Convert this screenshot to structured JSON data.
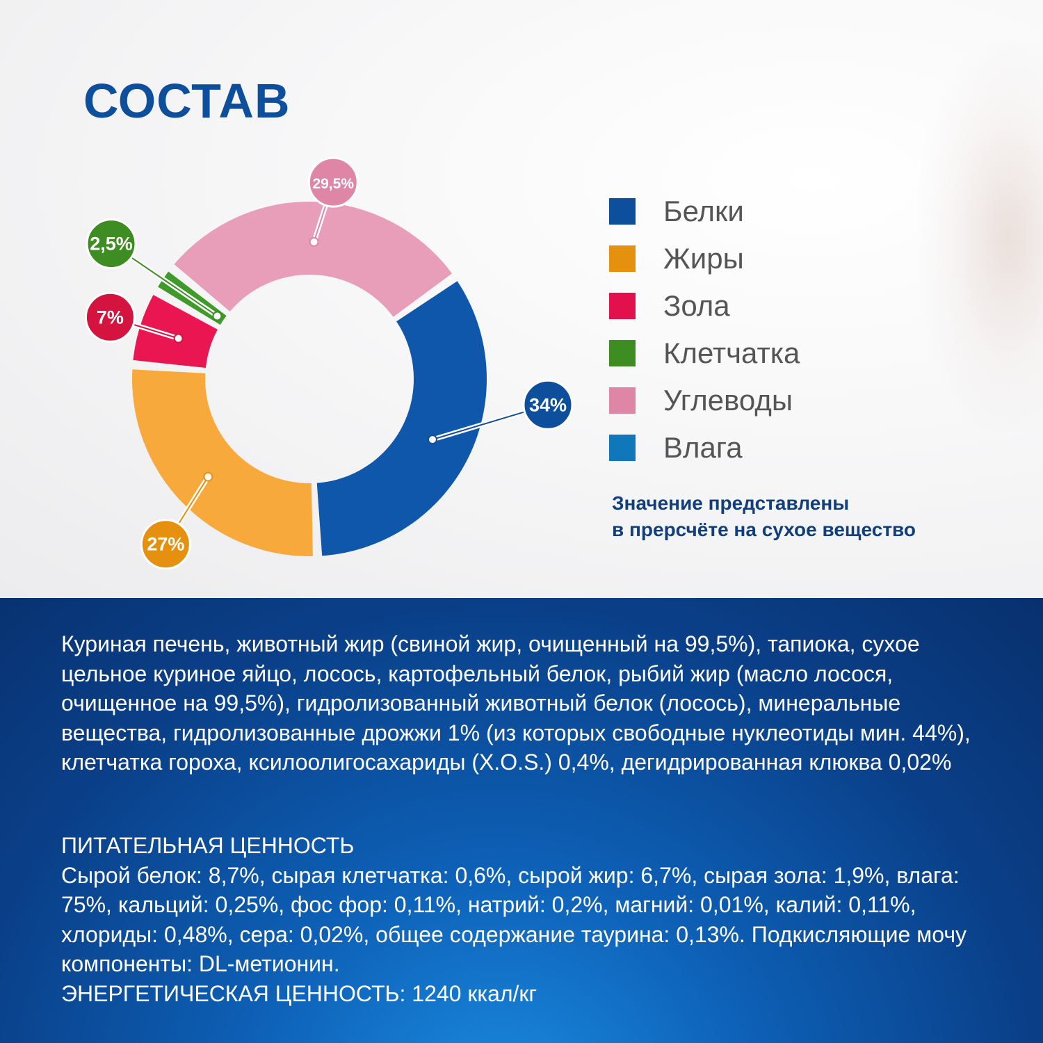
{
  "heading": "СОСТАВ",
  "chart_data": {
    "type": "pie",
    "title": "",
    "slices": [
      {
        "label": "Белки",
        "value": 34,
        "value_label": "34%",
        "color": "#0f57aa",
        "badge_color": "#0d4f9c"
      },
      {
        "label": "Жиры",
        "value": 27,
        "value_label": "27%",
        "color": "#f7a93b",
        "badge_color": "#e5900f"
      },
      {
        "label": "Зола",
        "value": 7,
        "value_label": "7%",
        "color": "#ea1651",
        "badge_color": "#d4143f"
      },
      {
        "label": "Клетчатка",
        "value": 2.5,
        "value_label": "2,5%",
        "color": "#3f9a2a",
        "badge_color": "#3d8d22"
      },
      {
        "label": "Углеводы",
        "value": 29.5,
        "value_label": "29,5%",
        "color": "#e89db9",
        "badge_color": "#df86a6"
      }
    ],
    "legend": [
      {
        "label": "Белки",
        "color": "#0d4f9c"
      },
      {
        "label": "Жиры",
        "color": "#e5900f"
      },
      {
        "label": "Зола",
        "color": "#e3104e"
      },
      {
        "label": "Клетчатка",
        "color": "#3d8d22"
      },
      {
        "label": "Углеводы",
        "color": "#df86a6"
      },
      {
        "label": "Влага",
        "color": "#1177bb"
      }
    ],
    "legend_position": "right"
  },
  "note": {
    "line1": "Значение представлены",
    "line2": "в прерсчёте на сухое вещество"
  },
  "ingredients": "Куриная печень, животный жир (свиной жир, очищенный на 99,5%), тапиока, сухое цельное куриное яйцо, лосось, картофельный белок, рыбий жир (масло лосося, очищенное на 99,5%), гидролизованный животный белок (лосось), минеральные вещества, гидролизованные дрожжи 1% (из которых свободные нуклеотиды мин. 44%), клетчатка гороха, ксилоолигосахариды (X.O.S.) 0,4%, дегидрированная клюква 0,02%",
  "nutrition": {
    "heading": "ПИТАТЕЛЬНАЯ ЦЕННОСТЬ",
    "text": "Сырой белок: 8,7%, сырая клетчатка: 0,6%, сырой жир: 6,7%, сырая зола: 1,9%, влага: 75%, кальций: 0,25%, фос фор: 0,11%, натрий: 0,2%, магний: 0,01%, калий: 0,11%, хлориды: 0,48%, сера: 0,02%, общее содержание таурина: 0,13%. Подкисляющие мочу компоненты: DL-метионин.",
    "energy": "ЭНЕРГЕТИЧЕСКАЯ ЦЕННОСТЬ: 1240 ккал/кг"
  }
}
